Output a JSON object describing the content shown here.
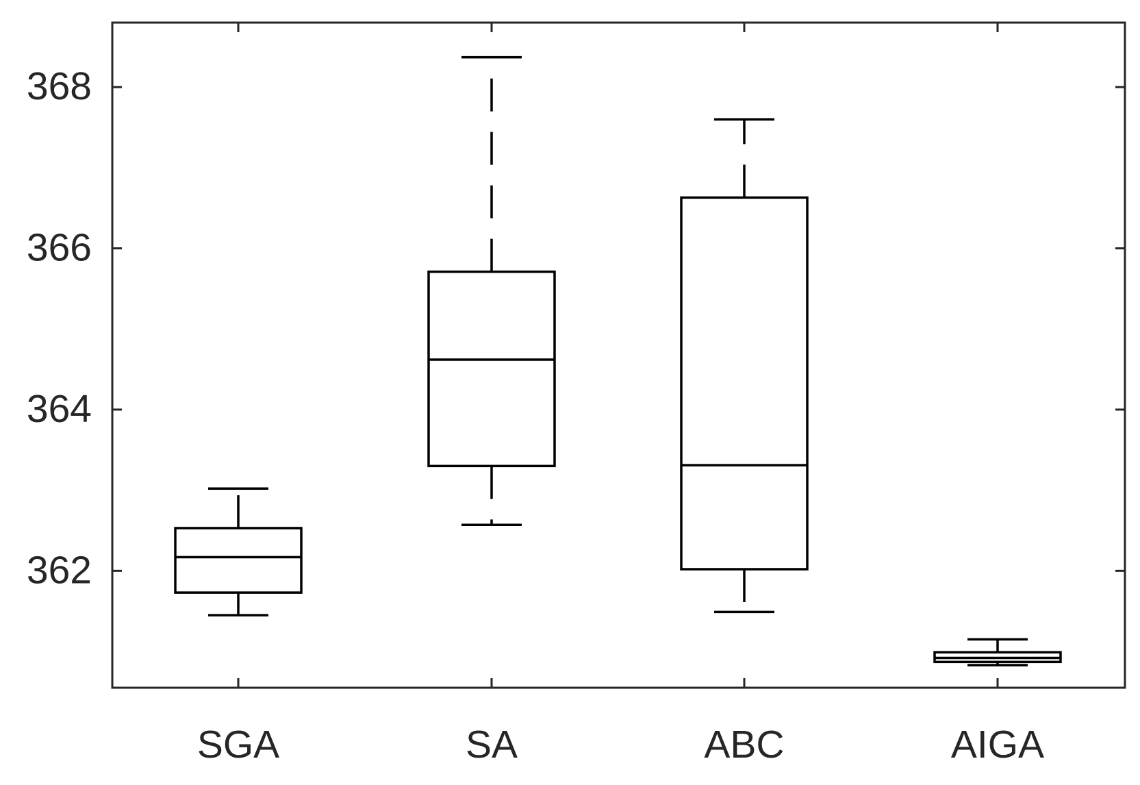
{
  "chart_data": {
    "type": "boxplot",
    "title": "",
    "xlabel": "",
    "ylabel": "",
    "categories": [
      "SGA",
      "SA",
      "ABC",
      "AIGA"
    ],
    "y_ticks": [
      362,
      364,
      366,
      368
    ],
    "y_tick_labels": [
      "362",
      "364",
      "366",
      "368"
    ],
    "ylim": [
      360.55,
      368.8
    ],
    "grid": false,
    "legend": "none",
    "box_color": "#000000",
    "axis_color": "#262626",
    "boxes": [
      {
        "label": "SGA",
        "lower_whisker": 361.45,
        "q1": 361.73,
        "median": 362.17,
        "q3": 362.53,
        "upper_whisker": 363.02
      },
      {
        "label": "SA",
        "lower_whisker": 362.57,
        "q1": 363.3,
        "median": 364.62,
        "q3": 365.71,
        "upper_whisker": 368.37
      },
      {
        "label": "ABC",
        "lower_whisker": 361.49,
        "q1": 362.02,
        "median": 363.31,
        "q3": 366.63,
        "upper_whisker": 367.6
      },
      {
        "label": "AIGA",
        "lower_whisker": 360.83,
        "q1": 360.87,
        "median": 360.92,
        "q3": 360.99,
        "upper_whisker": 361.15
      }
    ]
  }
}
